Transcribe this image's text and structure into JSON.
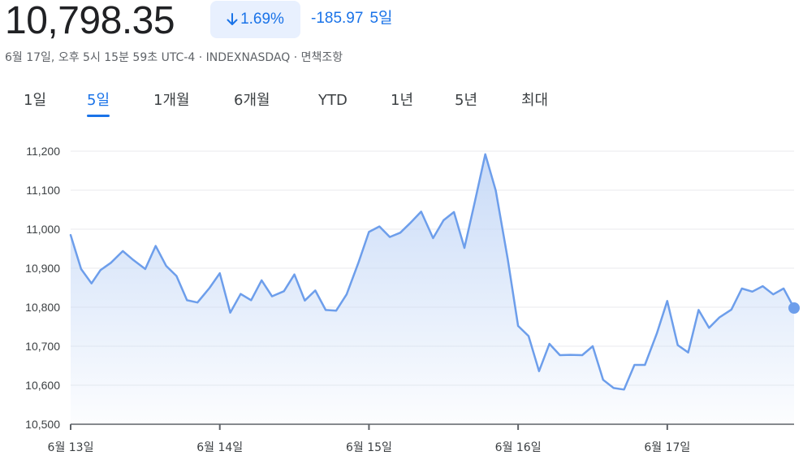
{
  "header": {
    "price": "10,798.35",
    "percent_change": "1.69%",
    "direction_icon": "arrow-down-icon",
    "absolute_change": "-185.97",
    "period": "5일",
    "meta": "6월 17일, 오후 5시 15분 59초 UTC-4 · INDEXNASDAQ · 면책조항"
  },
  "tabs": [
    {
      "label": "1일",
      "active": false
    },
    {
      "label": "5일",
      "active": true
    },
    {
      "label": "1개월",
      "active": false
    },
    {
      "label": "6개월",
      "active": false
    },
    {
      "label": "YTD",
      "active": false
    },
    {
      "label": "1년",
      "active": false
    },
    {
      "label": "5년",
      "active": false
    },
    {
      "label": "최대",
      "active": false
    }
  ],
  "colors": {
    "accent": "#1a73e8",
    "line": "#6d9eeb",
    "area_top": "#c6d9f7",
    "grid": "#e8eaed"
  },
  "chart_data": {
    "type": "area",
    "ylim": [
      10500,
      11200
    ],
    "yticks": [
      "11,200",
      "11,100",
      "11,000",
      "10,900",
      "10,800",
      "10,700",
      "10,600",
      "10,500"
    ],
    "ytick_values": [
      11200,
      11100,
      11000,
      10900,
      10800,
      10700,
      10600,
      10500
    ],
    "xticks": [
      "6월 13일",
      "6월 14일",
      "6월 15일",
      "6월 16일",
      "6월 17일"
    ],
    "x_range": [
      0,
      4.85
    ],
    "series": [
      {
        "x": [
          0.0,
          0.07,
          0.14,
          0.2,
          0.27,
          0.35,
          0.42,
          0.5,
          0.57,
          0.64,
          0.71,
          0.78,
          0.85,
          0.93,
          1.0,
          1.07,
          1.14,
          1.21,
          1.28,
          1.35,
          1.43,
          1.5,
          1.57,
          1.64,
          1.71,
          1.78,
          1.85,
          1.93,
          2.0,
          2.07,
          2.14,
          2.21,
          2.28,
          2.35,
          2.43,
          2.5,
          2.57,
          2.64,
          2.71,
          2.78,
          2.85,
          2.93,
          3.0,
          3.07,
          3.14,
          3.21,
          3.28,
          3.35,
          3.43,
          3.5,
          3.57,
          3.64,
          3.71,
          3.78,
          3.85,
          3.93,
          4.0,
          4.07,
          4.14,
          4.21,
          4.28,
          4.35,
          4.43,
          4.5,
          4.57,
          4.64,
          4.71,
          4.78,
          4.85
        ],
        "values": [
          10985,
          10898,
          10861,
          10895,
          10914,
          10944,
          10921,
          10898,
          10957,
          10906,
          10880,
          10818,
          10812,
          10849,
          10887,
          10786,
          10834,
          10818,
          10869,
          10828,
          10841,
          10884,
          10817,
          10843,
          10793,
          10791,
          10833,
          10915,
          10993,
          11007,
          10980,
          10991,
          11017,
          11045,
          10977,
          11023,
          11044,
          10952,
          11071,
          11192,
          11099,
          10924,
          10752,
          10726,
          10636,
          10706,
          10677,
          10678,
          10677,
          10700,
          10614,
          10593,
          10589,
          10652,
          10652,
          10733,
          10816,
          10703,
          10684,
          10793,
          10747,
          10774,
          10794,
          10848,
          10840,
          10854,
          10833,
          10848,
          10798
        ]
      }
    ],
    "last_value": 10798.35
  }
}
